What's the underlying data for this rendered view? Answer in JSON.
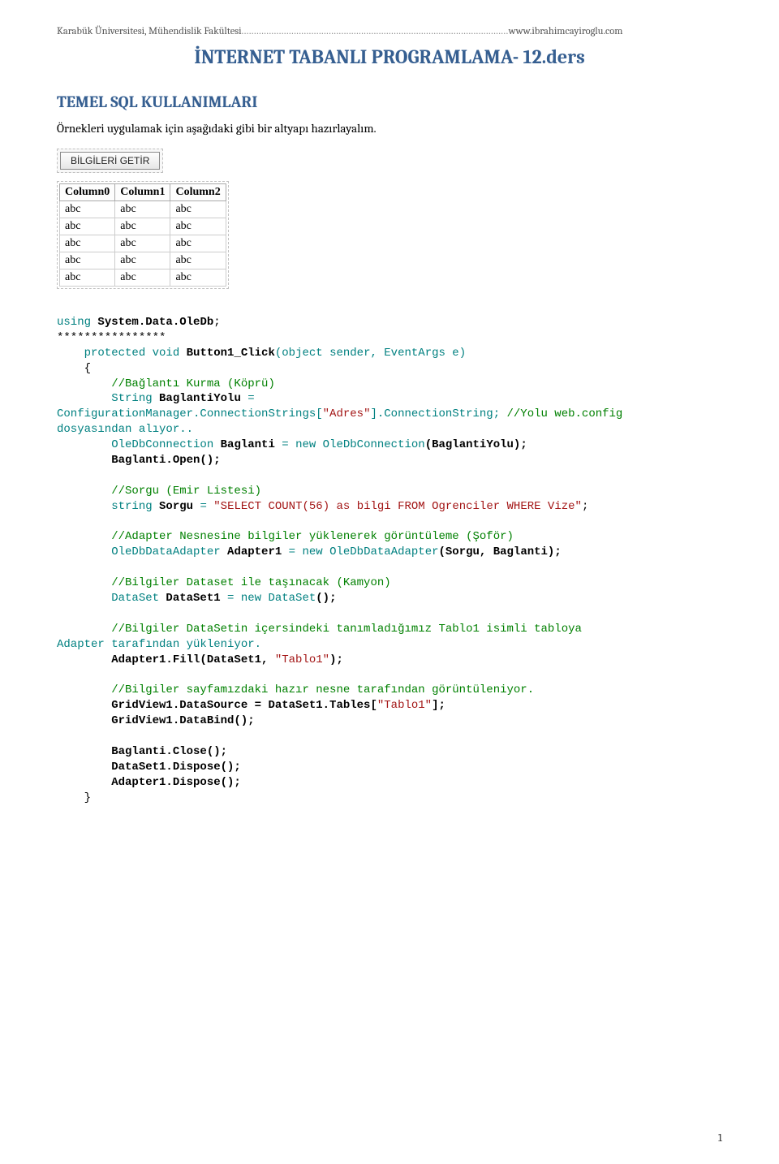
{
  "header": {
    "left": "Karabük Üniversitesi, Mühendislik Fakültesi",
    "right": "www.ibrahimcayiroglu.com"
  },
  "title": "İNTERNET TABANLI PROGRAMLAMA- 12.ders",
  "section": "TEMEL SQL KULLANIMLARI",
  "intro": "Örnekleri uygulamak için aşağıdaki gibi bir altyapı hazırlayalım.",
  "button_label": "BİLGİLERİ GETİR",
  "grid": {
    "columns": [
      "Column0",
      "Column1",
      "Column2"
    ],
    "rows": [
      [
        "abc",
        "abc",
        "abc"
      ],
      [
        "abc",
        "abc",
        "abc"
      ],
      [
        "abc",
        "abc",
        "abc"
      ],
      [
        "abc",
        "abc",
        "abc"
      ],
      [
        "abc",
        "abc",
        "abc"
      ]
    ]
  },
  "code": {
    "using_kw": "using",
    "using_ns": "System.Data.",
    "using_cls": "OleDb",
    "using_end": ";",
    "stars": "****************",
    "prot": "    protected void ",
    "btn": "Button1_Click",
    "btn_sig": "(object sender, EventArgs e)",
    "brace_open": "    {",
    "c1": "        //Bağlantı Kurma (Köprü)",
    "s1a": "        String ",
    "s1b": "BaglantiYolu",
    "s1c": " =",
    "cfg1": "ConfigurationManager.ConnectionStrings[",
    "cfg_str": "\"Adres\"",
    "cfg2": "].ConnectionString; ",
    "cfg_cmt": "//Yolu web.config",
    "dos": "dosyasından alıyor..",
    "conn1": "        OleDbConnection ",
    "conn_b": "Baglanti",
    "conn2": " = new OleDbConnection",
    "conn3": "(BaglantiYolu);",
    "open": "        Baglanti.Open();",
    "c2": "        //Sorgu (Emir Listesi)",
    "sorgu1": "        string ",
    "sorgu_b": "Sorgu",
    "sorgu2": " = ",
    "sql": "\"SELECT COUNT(56) as bilgi FROM Ogrenciler WHERE Vize\"",
    "sorgu3": ";",
    "c3": "        //Adapter Nesnesine bilgiler yüklenerek görüntüleme (Şoför)",
    "ad1": "        OleDbDataAdapter ",
    "ad_b": "Adapter1",
    "ad2": " = new OleDbDataAdapter",
    "ad3": "(Sorgu, Baglanti);",
    "c4": "        //Bilgiler Dataset ile taşınacak (Kamyon)",
    "ds1": "        DataSet ",
    "ds_b": "DataSet1",
    "ds2": " = new DataSet",
    "ds3": "();",
    "c5a": "        //Bilgiler DataSetin içersindeki tanımladığımız Tablo1 isimli tabloya",
    "c5b": "Adapter tarafından yükleniyor.",
    "fill1": "        Adapter1.Fill(DataSet1, ",
    "fill_str": "\"Tablo1\"",
    "fill2": ");",
    "c6": "        //Bilgiler sayfamızdaki hazır nesne tarafından görüntüleniyor.",
    "gv1a": "        GridView1.DataSource = DataSet1.Tables[",
    "gv1_str": "\"Tablo1\"",
    "gv1b": "];",
    "gv2": "        GridView1.DataBind();",
    "close": "        Baglanti.Close();",
    "dsd": "        DataSet1.Dispose();",
    "add": "        Adapter1.Dispose();",
    "brace_close": "    }"
  },
  "page_number": "1",
  "colors": {
    "heading": "#365f91",
    "keyword": "#0000ff",
    "string": "#a31515",
    "comment": "#008000",
    "teal": "#008080"
  }
}
